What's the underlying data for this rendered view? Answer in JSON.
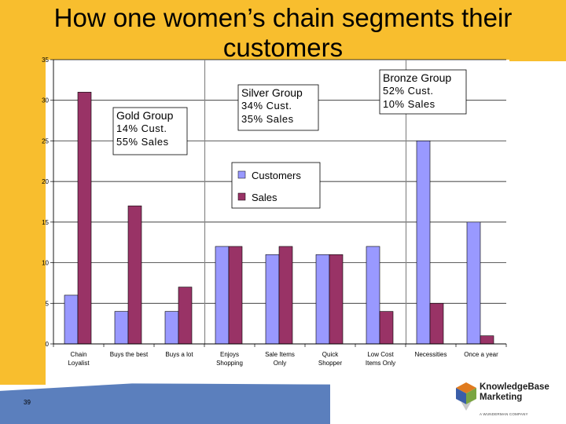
{
  "slide": {
    "title": "How one women’s chain segments their customers",
    "page_number": "39"
  },
  "logo": {
    "name_line1": "KnowledgeBase",
    "name_line2": "Marketing",
    "tagline": "A WUNDERMAN COMPANY",
    "colors": [
      "#e07b1f",
      "#3a5ea8",
      "#7aa542",
      "#c9c9c9"
    ]
  },
  "annotations": [
    {
      "title": "Gold Group",
      "lines": [
        "14% Cust.",
        "55% Sales"
      ]
    },
    {
      "title": "Silver Group",
      "lines": [
        "34% Cust.",
        "35% Sales"
      ]
    },
    {
      "title": "Bronze Group",
      "lines": [
        "52% Cust.",
        "10% Sales"
      ]
    }
  ],
  "colors": {
    "background_accent": "#f8be2e",
    "footer_band": "#5b7fbd",
    "customers": "#9999ff",
    "sales": "#993366"
  },
  "chart_data": {
    "type": "bar",
    "title": "",
    "xlabel": "",
    "ylabel": "",
    "ylim": [
      0,
      35
    ],
    "yticks": [
      0,
      5,
      10,
      15,
      20,
      25,
      30,
      35
    ],
    "grid": true,
    "legend_position": "upper-middle",
    "categories": [
      [
        "Chain",
        "Loyalist"
      ],
      [
        "Buys the best"
      ],
      [
        "Buys a lot"
      ],
      [
        "Enjoys",
        "Shopping"
      ],
      [
        "Sale Items",
        "Only"
      ],
      [
        "Quick",
        "Shopper"
      ],
      [
        "Low Cost",
        "Items Only"
      ],
      [
        "Necessities"
      ],
      [
        "Once a year"
      ]
    ],
    "series": [
      {
        "name": "Customers",
        "color": "#9999ff",
        "values": [
          6,
          4,
          4,
          12,
          11,
          11,
          12,
          25,
          15
        ]
      },
      {
        "name": "Sales",
        "color": "#993366",
        "values": [
          31,
          17,
          7,
          12,
          12,
          11,
          4,
          5,
          1
        ]
      }
    ],
    "group_separators_after_category": [
      2,
      6
    ]
  }
}
